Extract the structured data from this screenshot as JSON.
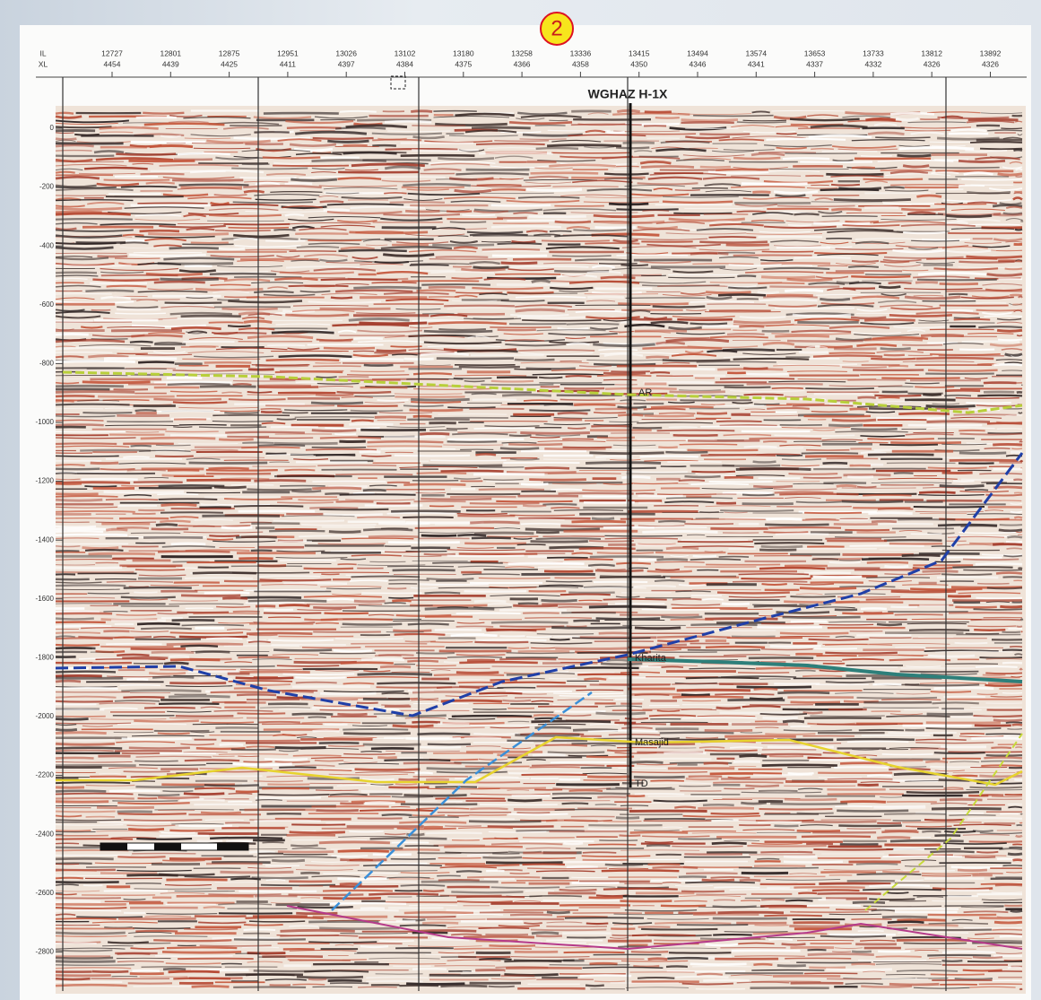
{
  "badge": "2",
  "header": {
    "il_label": "IL",
    "xl_label": "XL",
    "il": [
      "12727",
      "12801",
      "12875",
      "12951",
      "13026",
      "13102",
      "13180",
      "13258",
      "13336",
      "13415",
      "13494",
      "13574",
      "13653",
      "13733",
      "13812",
      "13892"
    ],
    "xl": [
      "4454",
      "4439",
      "4425",
      "4411",
      "4397",
      "4384",
      "4375",
      "4366",
      "4358",
      "4350",
      "4346",
      "4341",
      "4337",
      "4332",
      "4326",
      "4326"
    ]
  },
  "well": "WGHAZ H-1X",
  "depth_labels": [
    "0",
    "-200",
    "-400",
    "-600",
    "-800",
    "-1000",
    "-1200",
    "-1400",
    "-1600",
    "-1800",
    "-2000",
    "-2200",
    "-2400",
    "-2600",
    "-2800"
  ],
  "horizons": {
    "ar": "AR",
    "kharita": "Kharita",
    "masajid": "Masajid",
    "td": "TD"
  }
}
